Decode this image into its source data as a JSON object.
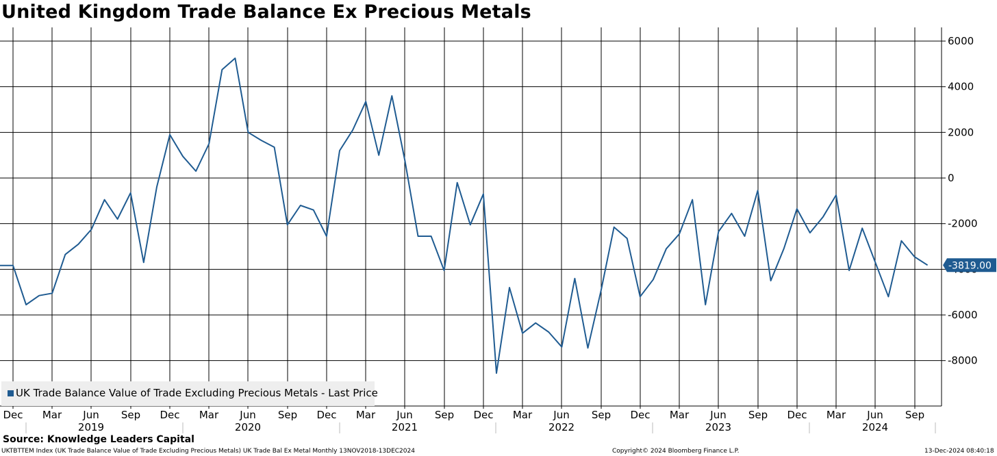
{
  "chart_data": {
    "type": "line",
    "title": "United Kingdom Trade Balance Ex Precious Metals",
    "series": [
      {
        "name": "UK Trade Balance Value of Trade Excluding Precious Metals - Last Price",
        "color": "#1f5b91",
        "last_value_label": "-3819.00",
        "start": "2018-11",
        "values": [
          -3830,
          -5550,
          -5150,
          -5050,
          -3350,
          -2900,
          -2250,
          -950,
          -1800,
          -650,
          -3700,
          -400,
          1900,
          950,
          300,
          1500,
          4750,
          5250,
          2000,
          1650,
          1350,
          -2050,
          -1200,
          -1400,
          -2550,
          1200,
          2100,
          3350,
          1000,
          3600,
          750,
          -2550,
          -2550,
          -4050,
          -200,
          -2050,
          -700,
          -8550,
          -4800,
          -6800,
          -6350,
          -6750,
          -7400,
          -4400,
          -7450,
          -4950,
          -2150,
          -2650,
          -5200,
          -4450,
          -3100,
          -2450,
          -950,
          -5550,
          -2350,
          -1550,
          -2550,
          -550,
          -4500,
          -3100,
          -1350,
          -2400,
          -1700,
          -750,
          -4050,
          -2200,
          -3700,
          -5200,
          -2750,
          -3450,
          -3819
        ]
      }
    ],
    "y_axis": {
      "position": "right",
      "ticks": [
        6000,
        4000,
        2000,
        0,
        -2000,
        -4000,
        -6000,
        -8000
      ],
      "tick_labels": [
        "6000",
        "4000",
        "2000",
        "0",
        "-2000",
        "-4000",
        "-6000",
        "-8000"
      ],
      "ylim": [
        -10000,
        6000
      ]
    },
    "x_axis": {
      "month_labels": [
        "Dec",
        "Mar",
        "Jun",
        "Sep",
        "Dec",
        "Mar",
        "Jun",
        "Sep",
        "Dec",
        "Mar",
        "Jun",
        "Sep",
        "Dec",
        "Mar",
        "Jun",
        "Sep",
        "Dec",
        "Mar",
        "Jun",
        "Sep",
        "Dec",
        "Mar",
        "Jun",
        "Sep"
      ],
      "month_label_offsets": [
        1,
        4,
        7,
        10,
        13,
        16,
        19,
        22,
        25,
        28,
        31,
        34,
        37,
        40,
        43,
        46,
        49,
        52,
        55,
        58,
        61,
        64,
        67,
        70
      ],
      "year_labels": [
        "2019",
        "2020",
        "2021",
        "2022",
        "2023",
        "2024"
      ],
      "year_label_offsets": [
        7,
        19,
        31,
        43,
        55,
        67
      ]
    },
    "grid": true
  },
  "legend": {
    "label": "UK Trade Balance Value of Trade Excluding Precious Metals - Last Price"
  },
  "source": "Source: Knowledge Leaders Capital",
  "footer": {
    "left": "UKTBTTEM Index (UK Trade Balance Value  of Trade Excluding Precious Metals) UK Trade Bal Ex Metal  Monthly 13NOV2018-13DEC2024",
    "middle": "Copyright© 2024 Bloomberg Finance L.P.",
    "right": "13-Dec-2024 08:40:18"
  }
}
